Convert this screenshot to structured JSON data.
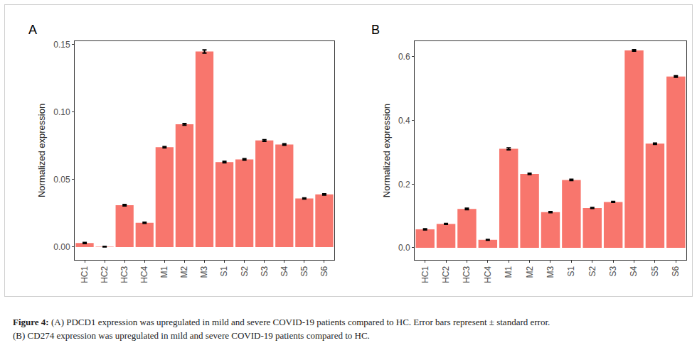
{
  "chart_data": [
    {
      "type": "bar",
      "title": "A",
      "categories": [
        "HC1",
        "HC2",
        "HC3",
        "HC4",
        "M1",
        "M2",
        "M3",
        "S1",
        "S2",
        "S3",
        "S4",
        "S5",
        "S6"
      ],
      "values": [
        0.003,
        0.0003,
        0.031,
        0.018,
        0.074,
        0.091,
        0.145,
        0.063,
        0.065,
        0.079,
        0.076,
        0.036,
        0.039
      ],
      "errors": [
        0.0004,
        0.0002,
        0.0005,
        0.0004,
        0.0005,
        0.0006,
        0.0012,
        0.0005,
        0.0005,
        0.0006,
        0.0005,
        0.0004,
        0.0005
      ],
      "color": "#F8766D",
      "ylabel": "Normalized expression",
      "ylim": [
        -0.0095,
        0.1526
      ],
      "yticks": [
        {
          "value": 0,
          "label": "0.00"
        },
        0.05,
        {
          "value": 0.1,
          "label": "0.10"
        },
        0.15
      ],
      "grid": false
    },
    {
      "type": "bar",
      "title": "B",
      "categories": [
        "HC1",
        "HC2",
        "HC3",
        "HC4",
        "M1",
        "M2",
        "M3",
        "S1",
        "S2",
        "S3",
        "S4",
        "S5",
        "S6"
      ],
      "values": [
        0.058,
        0.075,
        0.122,
        0.025,
        0.311,
        0.232,
        0.112,
        0.213,
        0.125,
        0.144,
        0.62,
        0.327,
        0.538
      ],
      "errors": [
        0.0015,
        0.0015,
        0.002,
        0.001,
        0.003,
        0.002,
        0.0015,
        0.002,
        0.0015,
        0.0015,
        0.002,
        0.002,
        0.002
      ],
      "color": "#F8766D",
      "ylabel": "Normalized expression",
      "ylim": [
        -0.038,
        0.649
      ],
      "yticks": [
        {
          "value": 0,
          "label": "0.0"
        },
        0.2,
        0.4,
        0.6
      ],
      "grid": false
    }
  ],
  "caption": {
    "label": "Figure 4:",
    "lines": [
      "(A) PDCD1 expression was upregulated in mild and severe COVID-19 patients compared to HC. Error bars represent ± standard error.",
      "(B) CD274 expression was upregulated in mild and severe COVID-19 patients compared to HC."
    ]
  }
}
